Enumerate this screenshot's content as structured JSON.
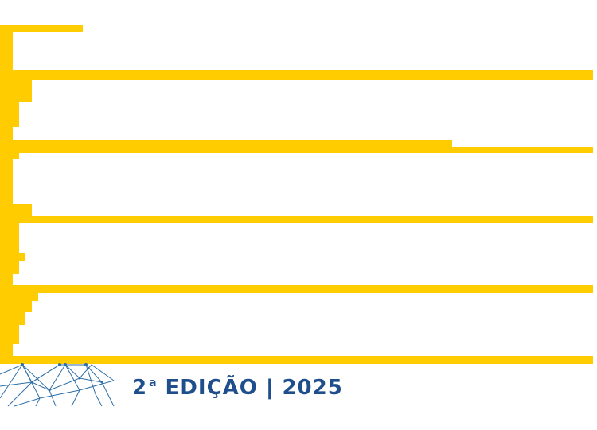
{
  "colors": {
    "accent_yellow": "#FFCC00",
    "brand_blue": "#1F4E8C",
    "network_blue": "#2E6FA8"
  },
  "logo": {
    "icon": "yellow-bars-logo-icon",
    "network_icon": "network-mesh-icon"
  },
  "edition": {
    "number": "2",
    "ordinal": "a",
    "label": "EDIÇÃO | 2025"
  }
}
